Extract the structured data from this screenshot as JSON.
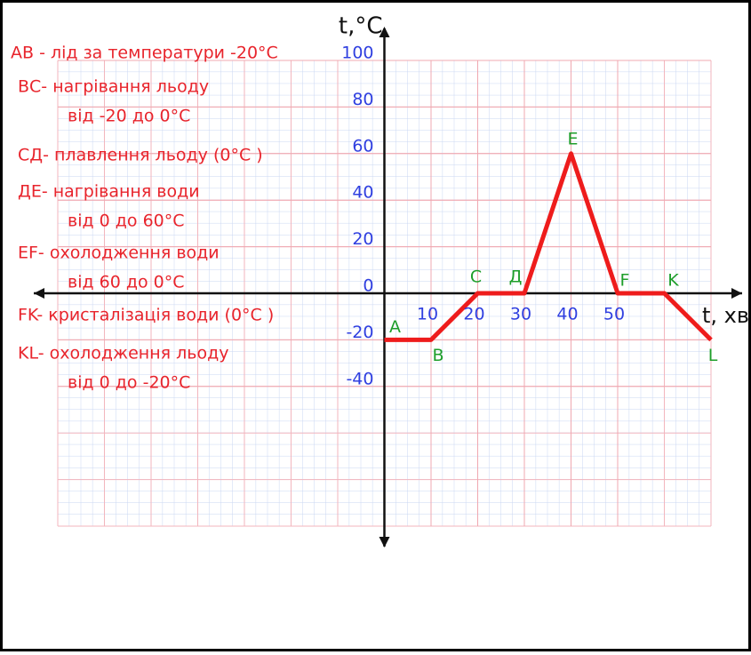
{
  "chart_data": {
    "type": "line",
    "x_label": "t, хв",
    "y_label": "t,°С",
    "x": [
      0,
      10,
      20,
      30,
      40,
      50,
      60,
      70
    ],
    "series": [
      {
        "name": "t,°С",
        "color": "#ee1c1c",
        "values": [
          -20,
          -20,
          0,
          0,
          60,
          0,
          0,
          -20
        ]
      }
    ],
    "point_labels": [
      "A",
      "B",
      "C",
      "Д",
      "E",
      "F",
      "K",
      "L"
    ],
    "xlim": [
      -70,
      70
    ],
    "ylim": [
      -100,
      100
    ],
    "xticks": [
      10,
      20,
      30,
      40,
      50
    ],
    "yticks": [
      -40,
      -20,
      0,
      20,
      40,
      60,
      80,
      100
    ],
    "grid": true,
    "notes": [
      [
        "АВ - лід за температури -20°С"
      ],
      [
        "ВС- нагрівання льоду",
        "від  -20 до  0°С"
      ],
      [
        "СД- плавлення льоду (0°С )"
      ],
      [
        "ДЕ- нагрівання води",
        "від 0 до 60°С"
      ],
      [
        "ЕF- охолодження води",
        "від 60 до 0°С"
      ],
      [
        "FK- кристалізація води (0°С )"
      ],
      [
        "KL- охолодження льоду",
        "від  0 до  -20°С"
      ]
    ]
  }
}
